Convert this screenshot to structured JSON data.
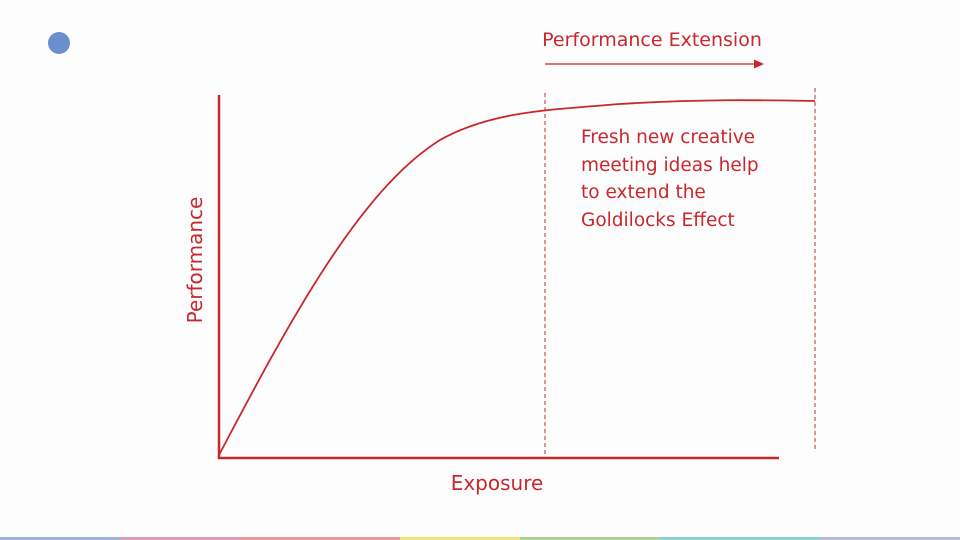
{
  "diagram": {
    "extension_label": "Performance Extension",
    "note": [
      "Fresh new creative",
      "meeting ideas help",
      "to extend the",
      "Goldilocks Effect"
    ],
    "x_axis_label": "Exposure",
    "y_axis_label": "Performance"
  }
}
